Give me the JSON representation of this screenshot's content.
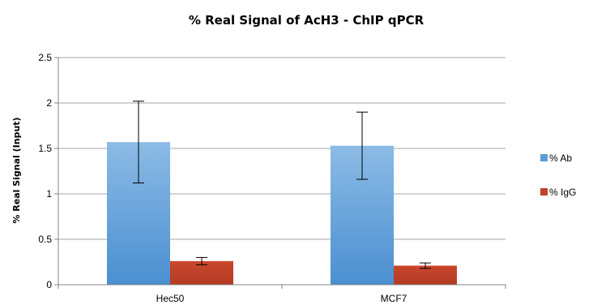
{
  "chart_data": {
    "type": "bar",
    "title": "% Real Signal of AcH3 - ChIP qPCR",
    "xlabel": "",
    "ylabel": "% Real Signal (Input)",
    "ylim": [
      0,
      2.5
    ],
    "yticks": [
      0,
      0.5,
      1,
      1.5,
      2,
      2.5
    ],
    "ytick_labels": [
      "0",
      "0.5",
      "1",
      "1.5",
      "2",
      "2.5"
    ],
    "categories": [
      "Hec50",
      "MCF7"
    ],
    "grid": true,
    "legend_position": "right",
    "series": [
      {
        "name": "% Ab",
        "values": [
          1.57,
          1.53
        ],
        "errors": [
          0.45,
          0.37
        ],
        "color": "#5b9bd5"
      },
      {
        "name": "% IgG",
        "values": [
          0.26,
          0.21
        ],
        "errors": [
          0.04,
          0.03
        ],
        "color": "#c0402a"
      }
    ]
  }
}
